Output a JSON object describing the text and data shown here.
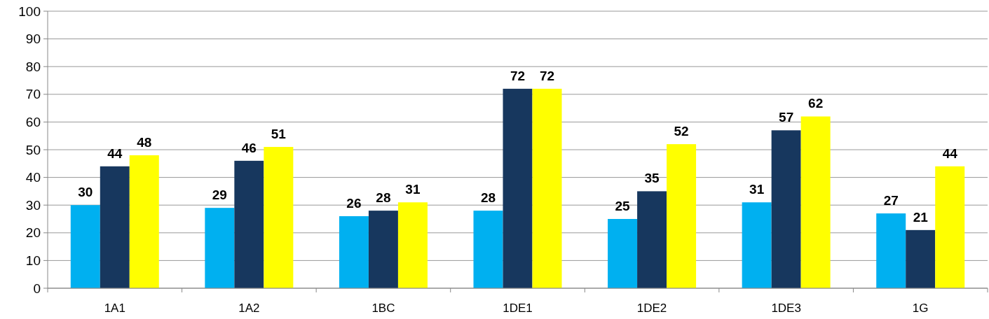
{
  "chart_data": {
    "type": "bar",
    "categories": [
      "1A1",
      "1A2",
      "1BC",
      "1DE1",
      "1DE2",
      "1DE3",
      "1G"
    ],
    "series": [
      {
        "color": "#00b0f0",
        "values": [
          30,
          29,
          26,
          28,
          25,
          31,
          27
        ]
      },
      {
        "color": "#17375e",
        "values": [
          44,
          46,
          28,
          72,
          35,
          57,
          21
        ]
      },
      {
        "color": "#ffff00",
        "values": [
          48,
          51,
          31,
          72,
          52,
          62,
          44
        ]
      }
    ],
    "ylim": [
      0,
      100
    ],
    "yticks": [
      0,
      10,
      20,
      30,
      40,
      50,
      60,
      70,
      80,
      90,
      100
    ],
    "grid": "y",
    "data_labels": true
  }
}
